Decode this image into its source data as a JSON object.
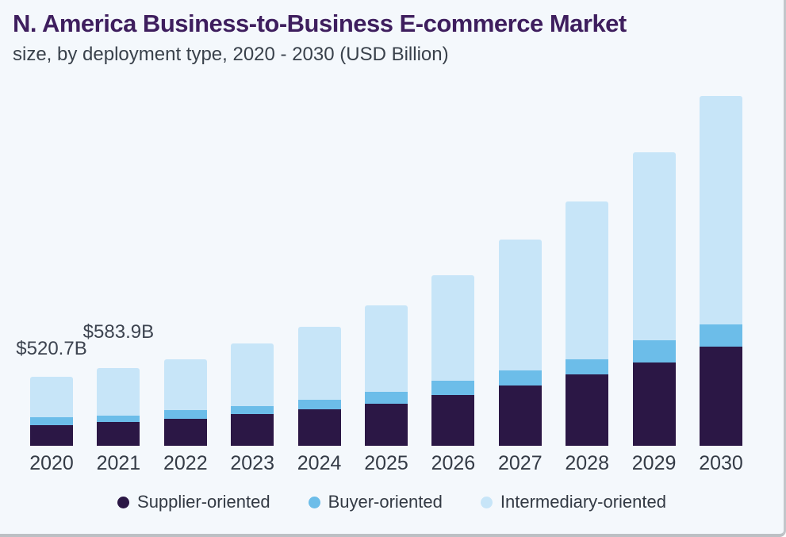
{
  "header": {
    "title": "N. America Business-to-Business E-commerce Market",
    "subtitle": "size, by deployment type, 2020 - 2030 (USD Billion)"
  },
  "chart_data": {
    "type": "bar",
    "stacked": true,
    "title": "N. America Business-to-Business E-commerce Market",
    "subtitle": "size, by deployment type, 2020 - 2030 (USD Billion)",
    "unit": "USD Billion",
    "xlabel": "",
    "ylabel": "",
    "grid": false,
    "legend_position": "bottom",
    "categories": [
      "2020",
      "2021",
      "2022",
      "2023",
      "2024",
      "2025",
      "2026",
      "2027",
      "2028",
      "2029",
      "2030"
    ],
    "series": [
      {
        "name": "Supplier-oriented",
        "color": "#2b1745",
        "values": [
          155,
          179,
          202,
          238,
          274,
          320,
          383,
          454,
          541,
          631,
          746
        ]
      },
      {
        "name": "Buyer-oriented",
        "color": "#6cbde9",
        "values": [
          60,
          48,
          65,
          63,
          71,
          89,
          105,
          113,
          111,
          165,
          171
        ]
      },
      {
        "name": "Intermediary-oriented",
        "color": "#c7e5f8",
        "values": [
          305.7,
          356.9,
          387,
          473,
          553,
          650,
          797,
          992,
          1193,
          1417,
          1725
        ]
      }
    ],
    "totals": [
      520.7,
      583.9,
      654,
      774,
      898,
      1059,
      1285,
      1559,
      1845,
      2213,
      2642
    ],
    "annotations": [
      {
        "category": "2020",
        "label": "$520.7B"
      },
      {
        "category": "2021",
        "label": "$583.9B"
      }
    ]
  },
  "colors": {
    "background": "#f4f8fc",
    "title": "#3e1e5e",
    "text": "#39414b",
    "border": "#c2c6ca"
  }
}
